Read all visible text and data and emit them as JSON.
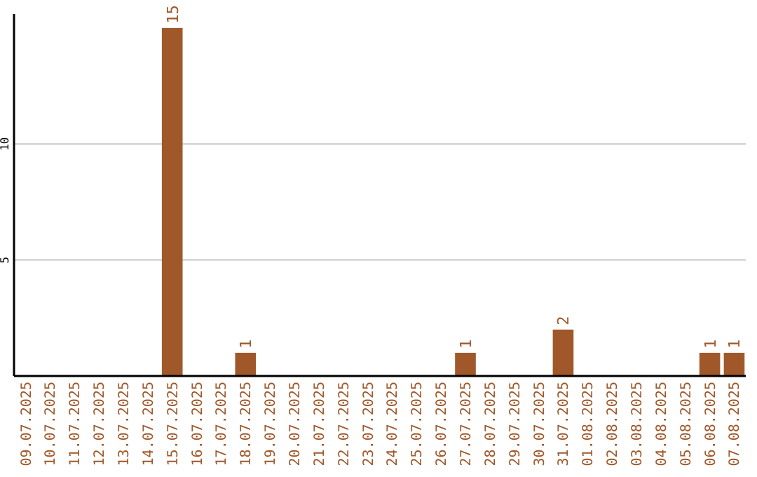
{
  "chart_data": {
    "type": "bar",
    "categories": [
      "09.07.2025",
      "10.07.2025",
      "11.07.2025",
      "12.07.2025",
      "13.07.2025",
      "14.07.2025",
      "15.07.2025",
      "16.07.2025",
      "17.07.2025",
      "18.07.2025",
      "19.07.2025",
      "20.07.2025",
      "21.07.2025",
      "22.07.2025",
      "23.07.2025",
      "24.07.2025",
      "25.07.2025",
      "26.07.2025",
      "27.07.2025",
      "28.07.2025",
      "29.07.2025",
      "30.07.2025",
      "31.07.2025",
      "01.08.2025",
      "02.08.2025",
      "03.08.2025",
      "04.08.2025",
      "05.08.2025",
      "06.08.2025",
      "07.08.2025"
    ],
    "values": [
      0,
      0,
      0,
      0,
      0,
      0,
      15,
      0,
      0,
      1,
      0,
      0,
      0,
      0,
      0,
      0,
      0,
      0,
      1,
      0,
      0,
      0,
      2,
      0,
      0,
      0,
      0,
      0,
      1,
      1
    ],
    "value_labels": [
      null,
      null,
      null,
      null,
      null,
      null,
      "15",
      null,
      null,
      "1",
      null,
      null,
      null,
      null,
      null,
      null,
      null,
      null,
      "1",
      null,
      null,
      null,
      "2",
      null,
      null,
      null,
      null,
      null,
      "1",
      "1"
    ],
    "color": "#a0582a",
    "ylim": [
      0,
      15.6
    ],
    "yticks": [
      5,
      10
    ],
    "grid": "y"
  }
}
